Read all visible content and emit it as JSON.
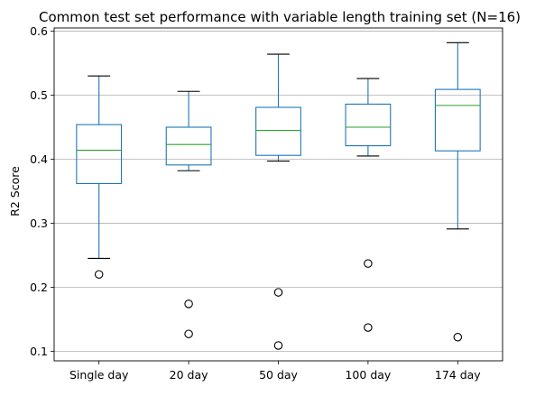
{
  "chart_data": {
    "type": "box",
    "title": "Common test set performance with variable length training set (N=16)",
    "xlabel": "",
    "ylabel": "R2 Score",
    "ylim": [
      0.085,
      0.605
    ],
    "yticks": [
      "0.1",
      "0.2",
      "0.3",
      "0.4",
      "0.5",
      "0.6"
    ],
    "grid": "horizontal",
    "legend": "none",
    "categories": [
      "Single day",
      "20 day",
      "50 day",
      "100 day",
      "174 day"
    ],
    "boxes": [
      {
        "whisker_low": 0.245,
        "q1": 0.362,
        "median": 0.414,
        "q3": 0.454,
        "whisker_high": 0.53,
        "outliers": [
          0.22
        ]
      },
      {
        "whisker_low": 0.382,
        "q1": 0.391,
        "median": 0.423,
        "q3": 0.45,
        "whisker_high": 0.506,
        "outliers": [
          0.174,
          0.127
        ]
      },
      {
        "whisker_low": 0.397,
        "q1": 0.406,
        "median": 0.445,
        "q3": 0.481,
        "whisker_high": 0.564,
        "outliers": [
          0.192,
          0.109
        ]
      },
      {
        "whisker_low": 0.405,
        "q1": 0.421,
        "median": 0.45,
        "q3": 0.486,
        "whisker_high": 0.526,
        "outliers": [
          0.237,
          0.137
        ]
      },
      {
        "whisker_low": 0.291,
        "q1": 0.413,
        "median": 0.484,
        "q3": 0.509,
        "whisker_high": 0.582,
        "outliers": [
          0.122
        ]
      }
    ],
    "colors": {
      "box": "#1f77b4",
      "median": "#2ca02c",
      "whisker_cap": "#000000",
      "outlier_edge": "#000000",
      "grid": "#b0b0b0",
      "axis": "#000000"
    }
  }
}
